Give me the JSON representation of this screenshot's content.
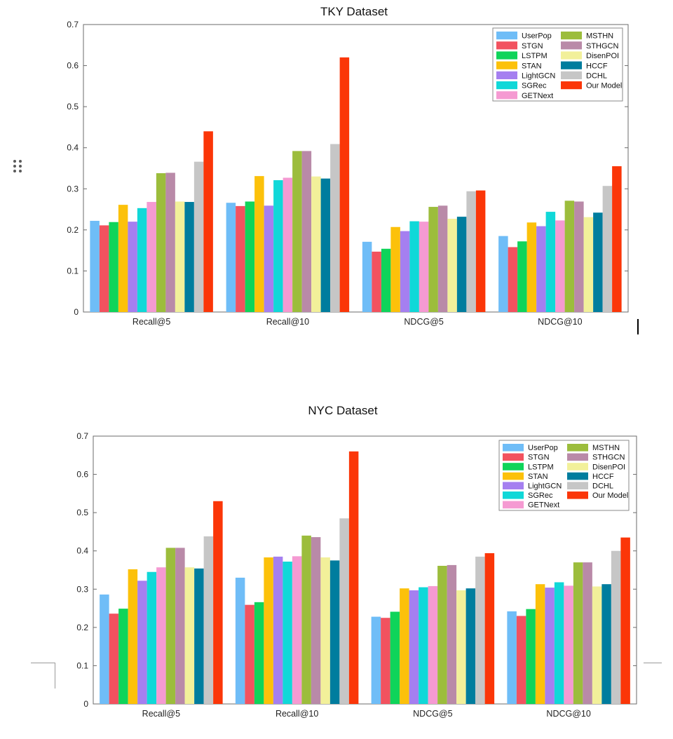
{
  "models": [
    "UserPop",
    "STGN",
    "LSTPM",
    "STAN",
    "LightGCN",
    "SGRec",
    "GETNext",
    "MSTHN",
    "STHGCN",
    "DisenPOI",
    "HCCF",
    "DCHL",
    "Our Model"
  ],
  "colors": [
    "#6fbdf7",
    "#f2525f",
    "#0fd45a",
    "#fcc10a",
    "#a57ff0",
    "#10d8d8",
    "#f59ad2",
    "#9cbd3c",
    "#b98aa8",
    "#f2f09a",
    "#007d9e",
    "#c6c6c6",
    "#fb3608"
  ],
  "chart_data": [
    {
      "type": "bar",
      "title": "TKY Dataset",
      "xlabel": "",
      "ylabel": "",
      "ylim": [
        0,
        0.7
      ],
      "yticks": [
        "0",
        "0.1",
        "0.2",
        "0.3",
        "0.4",
        "0.5",
        "0.6",
        "0.7"
      ],
      "categories": [
        "Recall@5",
        "Recall@10",
        "NDCG@5",
        "NDCG@10"
      ],
      "legend_position": "top-right",
      "series": [
        {
          "name": "UserPop",
          "values": [
            0.222,
            0.266,
            0.171,
            0.185
          ]
        },
        {
          "name": "STGN",
          "values": [
            0.211,
            0.258,
            0.147,
            0.158
          ]
        },
        {
          "name": "LSTPM",
          "values": [
            0.219,
            0.269,
            0.154,
            0.172
          ]
        },
        {
          "name": "STAN",
          "values": [
            0.261,
            0.331,
            0.207,
            0.218
          ]
        },
        {
          "name": "LightGCN",
          "values": [
            0.22,
            0.259,
            0.197,
            0.209
          ]
        },
        {
          "name": "SGRec",
          "values": [
            0.253,
            0.321,
            0.221,
            0.244
          ]
        },
        {
          "name": "GETNext",
          "values": [
            0.268,
            0.327,
            0.22,
            0.223
          ]
        },
        {
          "name": "MSTHN",
          "values": [
            0.338,
            0.392,
            0.256,
            0.271
          ]
        },
        {
          "name": "STHGCN",
          "values": [
            0.339,
            0.392,
            0.259,
            0.269
          ]
        },
        {
          "name": "DisenPOI",
          "values": [
            0.269,
            0.33,
            0.227,
            0.231
          ]
        },
        {
          "name": "HCCF",
          "values": [
            0.268,
            0.325,
            0.232,
            0.242
          ]
        },
        {
          "name": "DCHL",
          "values": [
            0.366,
            0.409,
            0.294,
            0.307
          ]
        },
        {
          "name": "Our Model",
          "values": [
            0.44,
            0.62,
            0.296,
            0.355
          ]
        }
      ]
    },
    {
      "type": "bar",
      "title": "NYC Dataset",
      "xlabel": "",
      "ylabel": "",
      "ylim": [
        0,
        0.7
      ],
      "yticks": [
        "0",
        "0.1",
        "0.2",
        "0.3",
        "0.4",
        "0.5",
        "0.6",
        "0.7"
      ],
      "categories": [
        "Recall@5",
        "Recall@10",
        "NDCG@5",
        "NDCG@10"
      ],
      "legend_position": "top-right",
      "series": [
        {
          "name": "UserPop",
          "values": [
            0.286,
            0.33,
            0.228,
            0.242
          ]
        },
        {
          "name": "STGN",
          "values": [
            0.236,
            0.259,
            0.225,
            0.23
          ]
        },
        {
          "name": "LSTPM",
          "values": [
            0.249,
            0.266,
            0.241,
            0.248
          ]
        },
        {
          "name": "STAN",
          "values": [
            0.352,
            0.383,
            0.302,
            0.313
          ]
        },
        {
          "name": "LightGCN",
          "values": [
            0.322,
            0.385,
            0.297,
            0.304
          ]
        },
        {
          "name": "SGRec",
          "values": [
            0.345,
            0.372,
            0.305,
            0.318
          ]
        },
        {
          "name": "GETNext",
          "values": [
            0.357,
            0.386,
            0.308,
            0.309
          ]
        },
        {
          "name": "MSTHN",
          "values": [
            0.408,
            0.44,
            0.361,
            0.37
          ]
        },
        {
          "name": "STHGCN",
          "values": [
            0.408,
            0.436,
            0.363,
            0.37
          ]
        },
        {
          "name": "DisenPOI",
          "values": [
            0.357,
            0.383,
            0.297,
            0.307
          ]
        },
        {
          "name": "HCCF",
          "values": [
            0.354,
            0.375,
            0.302,
            0.313
          ]
        },
        {
          "name": "DCHL",
          "values": [
            0.438,
            0.485,
            0.385,
            0.4
          ]
        },
        {
          "name": "Our Model",
          "values": [
            0.53,
            0.66,
            0.394,
            0.435
          ]
        }
      ]
    }
  ]
}
